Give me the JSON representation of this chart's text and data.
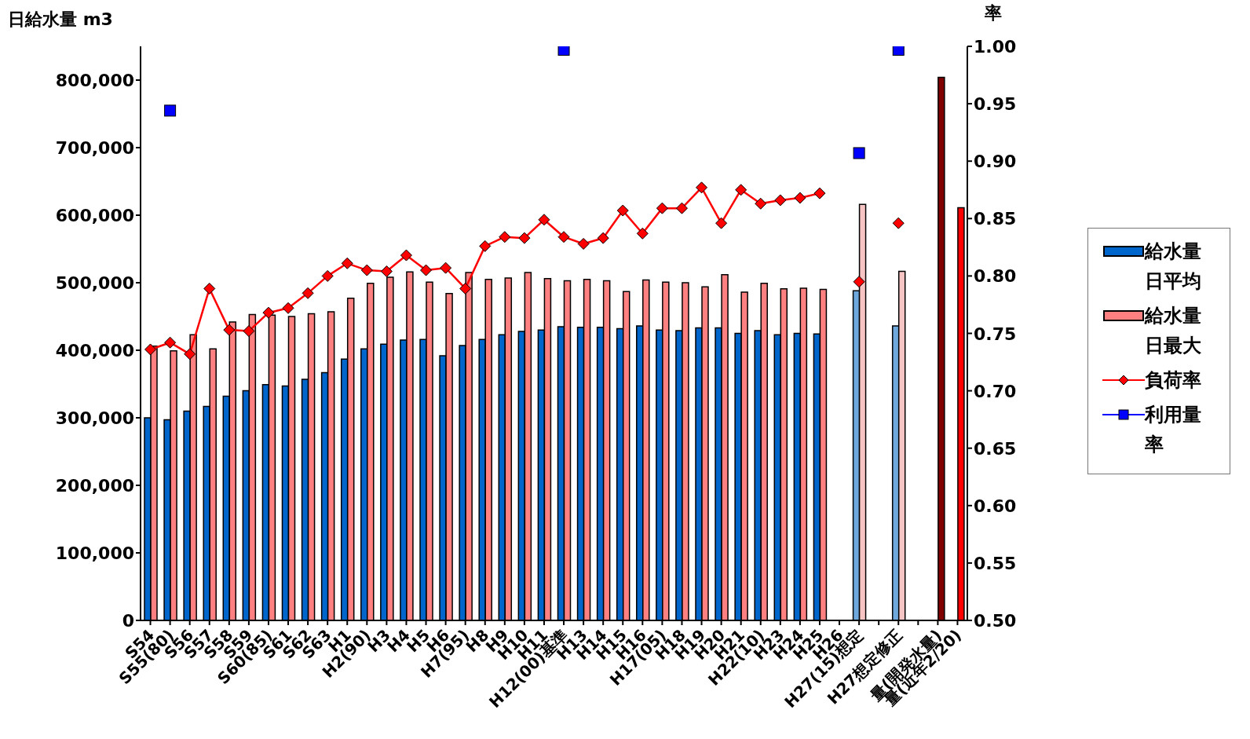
{
  "chart_data": {
    "type": "bar",
    "ylabel": "日給水量 m3",
    "y2label": "率",
    "categories": [
      "S54",
      "S55(80)",
      "S56",
      "S57",
      "S58",
      "S59",
      "S60(85)",
      "S61",
      "S62",
      "S63",
      "H1",
      "H2(90)",
      "H3",
      "H4",
      "H5",
      "H6",
      "H7(95)",
      "H8",
      "H9",
      "H10",
      "H11",
      "H12(00)基準",
      "H13",
      "H14",
      "H15",
      "H16",
      "H17(05)",
      "H18",
      "H19",
      "H20",
      "H21",
      "H22(10)",
      "H23",
      "H24",
      "H25",
      "H26",
      "H27(15)想定",
      null,
      "H27想定修正",
      null,
      "量(開発水量)",
      "量(近年2/20)"
    ],
    "series": [
      {
        "name": "給水量日平均",
        "color": "#0066cc",
        "colors": [
          "#0066cc",
          "#0066cc",
          "#0066cc",
          "#0066cc",
          "#0066cc",
          "#0066cc",
          "#0066cc",
          "#0066cc",
          "#0066cc",
          "#0066cc",
          "#0066cc",
          "#0066cc",
          "#0066cc",
          "#0066cc",
          "#0066cc",
          "#0066cc",
          "#0066cc",
          "#0066cc",
          "#0066cc",
          "#0066cc",
          "#0066cc",
          "#0066cc",
          "#0066cc",
          "#0066cc",
          "#0066cc",
          "#0066cc",
          "#0066cc",
          "#0066cc",
          "#0066cc",
          "#0066cc",
          "#0066cc",
          "#0066cc",
          "#0066cc",
          "#0066cc",
          "#0066cc",
          "#0066cc",
          "#6fa8dc",
          "#0066cc",
          "#6fa8dc",
          "#0066cc",
          "#0066cc",
          "#0066cc"
        ],
        "values": [
          300000,
          297000,
          310000,
          317000,
          332000,
          340000,
          349000,
          347000,
          357000,
          367000,
          387000,
          402000,
          409000,
          415000,
          416000,
          392000,
          407000,
          416000,
          423000,
          428000,
          430000,
          435000,
          434000,
          434000,
          432000,
          436000,
          430000,
          429000,
          433000,
          433000,
          425000,
          429000,
          423000,
          425000,
          424000,
          null,
          488000,
          null,
          436000,
          null,
          null,
          null
        ]
      },
      {
        "name": "給水量日最大",
        "color": "#ff8080",
        "colors": [
          "#ff8080",
          "#ff8080",
          "#ff8080",
          "#ff8080",
          "#ff8080",
          "#ff8080",
          "#ff8080",
          "#ff8080",
          "#ff8080",
          "#ff8080",
          "#ff8080",
          "#ff8080",
          "#ff8080",
          "#ff8080",
          "#ff8080",
          "#ff8080",
          "#ff8080",
          "#ff8080",
          "#ff8080",
          "#ff8080",
          "#ff8080",
          "#ff8080",
          "#ff8080",
          "#ff8080",
          "#ff8080",
          "#ff8080",
          "#ff8080",
          "#ff8080",
          "#ff8080",
          "#ff8080",
          "#ff8080",
          "#ff8080",
          "#ff8080",
          "#ff8080",
          "#ff8080",
          "#ff8080",
          "#f7c4c4",
          "#ff8080",
          "#f7c4c4",
          "#ff8080",
          "#800000",
          "#ff0000"
        ],
        "values": [
          406000,
          399000,
          423000,
          402000,
          442000,
          453000,
          452000,
          450000,
          454000,
          457000,
          477000,
          499000,
          508000,
          516000,
          501000,
          484000,
          515000,
          505000,
          507000,
          515000,
          506000,
          503000,
          505000,
          503000,
          487000,
          504000,
          501000,
          500000,
          494000,
          512000,
          486000,
          499000,
          491000,
          492000,
          490000,
          null,
          616000,
          null,
          517000,
          null,
          804000,
          611000
        ]
      },
      {
        "name": "負荷率",
        "type": "line",
        "axis": "y2",
        "color": "#ff0000",
        "marker": "diamond",
        "values": [
          0.736,
          0.742,
          0.732,
          0.789,
          0.753,
          0.752,
          0.768,
          0.772,
          0.785,
          0.8,
          0.811,
          0.805,
          0.804,
          0.818,
          0.805,
          0.807,
          0.789,
          0.826,
          0.834,
          0.833,
          0.849,
          0.834,
          0.828,
          0.833,
          0.857,
          0.837,
          0.859,
          0.859,
          0.877,
          0.846,
          0.875,
          0.863,
          0.866,
          0.868,
          0.872,
          null,
          0.795,
          null,
          0.846,
          null,
          null,
          null
        ]
      },
      {
        "name": "利用量率",
        "type": "scatter",
        "axis": "y2",
        "color": "#0000ff",
        "marker": "square",
        "values": [
          null,
          0.944,
          null,
          null,
          null,
          null,
          null,
          null,
          null,
          null,
          null,
          null,
          null,
          null,
          null,
          null,
          null,
          null,
          null,
          null,
          null,
          0.997,
          null,
          null,
          null,
          null,
          null,
          null,
          null,
          null,
          null,
          null,
          null,
          null,
          null,
          null,
          0.907,
          null,
          0.997,
          null,
          null,
          null
        ]
      }
    ],
    "ylim": [
      0,
      850000
    ],
    "yticks": [
      0,
      {
        "value": 100000,
        "label": "100,000"
      },
      {
        "value": 200000,
        "label": "200,000"
      },
      {
        "value": 300000,
        "label": "300,000"
      },
      {
        "value": 400000,
        "label": "400,000"
      },
      {
        "value": 500000,
        "label": "500,000"
      },
      {
        "value": 600000,
        "label": "600,000"
      },
      {
        "value": 700000,
        "label": "700,000"
      },
      {
        "value": 800000,
        "label": "800,000"
      }
    ],
    "y2lim": [
      0.5,
      1.0
    ],
    "y2ticks": [
      {
        "value": 0.5,
        "label": "0.50"
      },
      {
        "value": 0.55,
        "label": "0.55"
      },
      {
        "value": 0.6,
        "label": "0.60"
      },
      {
        "value": 0.65,
        "label": "0.65"
      },
      {
        "value": 0.7,
        "label": "0.70"
      },
      {
        "value": 0.75,
        "label": "0.75"
      },
      {
        "value": 0.8,
        "label": "0.80"
      },
      {
        "value": 0.85,
        "label": "0.85"
      },
      {
        "value": 0.9,
        "label": "0.90"
      },
      {
        "value": 0.95,
        "label": "0.95"
      },
      {
        "value": 1.0,
        "label": "1.00"
      }
    ],
    "legend": "right",
    "grid": false,
    "line_style": "solid"
  }
}
